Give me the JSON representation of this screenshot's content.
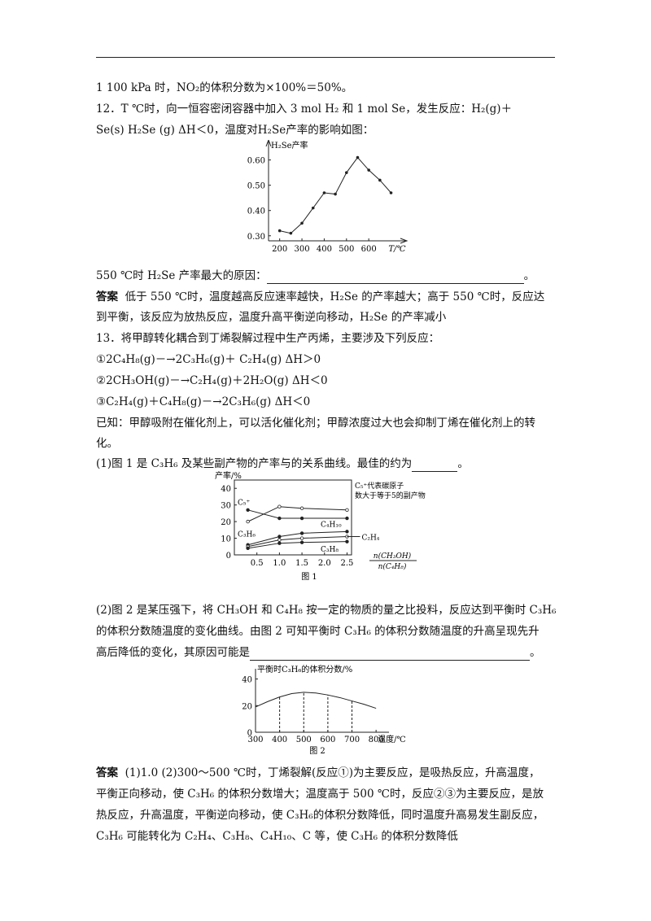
{
  "header_rule": true,
  "lines": {
    "l1": "1 100 kPa 时，NO₂的体积分数为×100%＝50%。",
    "q12a": "12．T ℃时，向一恒容密闭容器中加入 3 mol H₂ 和 1 mol Se，发生反应：H₂(g)＋",
    "q12b": "Se(s)    H₂Se (g)   ΔH＜0，温度对H₂Se产率的影响如图：",
    "q12c": "550 ℃时 H₂Se 产率最大的原因：",
    "q12c_end": "。",
    "ans12_label": "答案",
    "ans12a": "低于 550 ℃时，温度越高反应速率越快，H₂Se 的产率越大；高于 550 ℃时，反应达",
    "ans12b": "到平衡，该反应为放热反应，温度升高平衡逆向移动，H₂Se 的产率减小",
    "q13": "13．将甲醇转化耦合到丁烯裂解过程中生产丙烯，主要涉及下列反应：",
    "r1": "①2C₄H₈(g)－→2C₃H₆(g)＋ C₂H₄(g)   ΔH＞0",
    "r2": "②2CH₃OH(g)－→C₂H₄(g)＋2H₂O(g)   ΔH＜0",
    "r3": "③C₂H₄(g)＋C₄H₈(g)－→2C₃H₆(g)   ΔH＜0",
    "known_a": "已知：甲醇吸附在催化剂上，可以活化催化剂；甲醇浓度过大也会抑制丁烯在催化剂上的转",
    "known_b": "化。",
    "p1": "(1)图 1 是 C₃H₆ 及某些副产物的产率与的关系曲线。最佳的约为",
    "p1_end": "。",
    "p2a": "(2)图 2 是某压强下，将 CH₃OH 和 C₄H₈ 按一定的物质的量之比投料，反应达到平衡时 C₃H₆",
    "p2b": "的体积分数随温度的变化曲线。由图 2 可知平衡时 C₃H₆ 的体积分数随温度的升高呈现先升",
    "p2c": "高后降低的变化，其原因可能是",
    "p2c_end": "。",
    "ans13_label": "答案",
    "ans13a": "(1)1.0   (2)300～500 ℃时，丁烯裂解(反应①)为主要反应，是吸热反应，升高温度，",
    "ans13b": "平衡正向移动，使 C₃H₆ 的体积分数增大；温度高于 500 ℃时，反应②③为主要反应，是放",
    "ans13c": "热反应，升高温度，平衡逆向移动，使 C₃H₆的体积分数降低，同时温度升高易发生副反应，",
    "ans13d": "C₃H₆ 可能转化为 C₂H₄、C₃H₈、C₄H₁₀、C 等，使 C₃H₆ 的体积分数降低"
  },
  "chart_data": [
    {
      "type": "line",
      "ylabel": "H₂Se产率",
      "xlabel": "T/℃",
      "x": [
        200,
        250,
        300,
        350,
        400,
        450,
        500,
        550,
        600,
        650,
        700
      ],
      "yticks": [
        "0.30",
        "0.40",
        "0.50",
        "0.60"
      ],
      "xticks": [
        "200",
        "300",
        "400",
        "500",
        "600"
      ],
      "series": [
        {
          "values": [
            0.32,
            0.31,
            0.35,
            0.41,
            0.47,
            0.465,
            0.55,
            0.61,
            0.56,
            0.52,
            0.47
          ]
        }
      ],
      "ylim": [
        0.28,
        0.66
      ]
    },
    {
      "type": "line",
      "title": "图 1",
      "ylabel": "产率/%",
      "xlabel_num": "n(CH₃OH)",
      "xlabel_den": "n(C₄H₈)",
      "yticks": [
        "0",
        "10",
        "20",
        "30",
        "40"
      ],
      "xticks": [
        "0.5",
        "1.0",
        "1.5",
        "2.0",
        "2.5"
      ],
      "ylim": [
        0,
        45
      ],
      "note": "C₅⁺代表碳原子数大于等于5的副产物",
      "x": [
        0.3,
        1.0,
        1.5,
        2.5
      ],
      "series": [
        {
          "name": "C₅⁺",
          "values": [
            27,
            22,
            22,
            22
          ]
        },
        {
          "name": "C₃H₆",
          "values": [
            20,
            29,
            28,
            27
          ]
        },
        {
          "name": "C₄H₁₀",
          "values": [
            6,
            11,
            13,
            14
          ]
        },
        {
          "name": "C₂H₄",
          "values": [
            5,
            9,
            10,
            11
          ]
        },
        {
          "name": "C₃H₈",
          "values": [
            4,
            7,
            7.5,
            8
          ]
        }
      ]
    },
    {
      "type": "line",
      "title": "图 2",
      "ylabel": "平衡时C₃H₆的体积分数/%",
      "xlabel": "温度/℃",
      "yticks": [
        "0",
        "20",
        "40"
      ],
      "xticks": [
        "300",
        "400",
        "500",
        "600",
        "700",
        "800"
      ],
      "ylim": [
        0,
        40
      ],
      "x": [
        300,
        350,
        400,
        450,
        500,
        550,
        600,
        650,
        700,
        750,
        800
      ],
      "series": [
        {
          "values": [
            19,
            23,
            26.5,
            29,
            30,
            29.5,
            28,
            26,
            23.5,
            21,
            18
          ]
        }
      ]
    }
  ]
}
